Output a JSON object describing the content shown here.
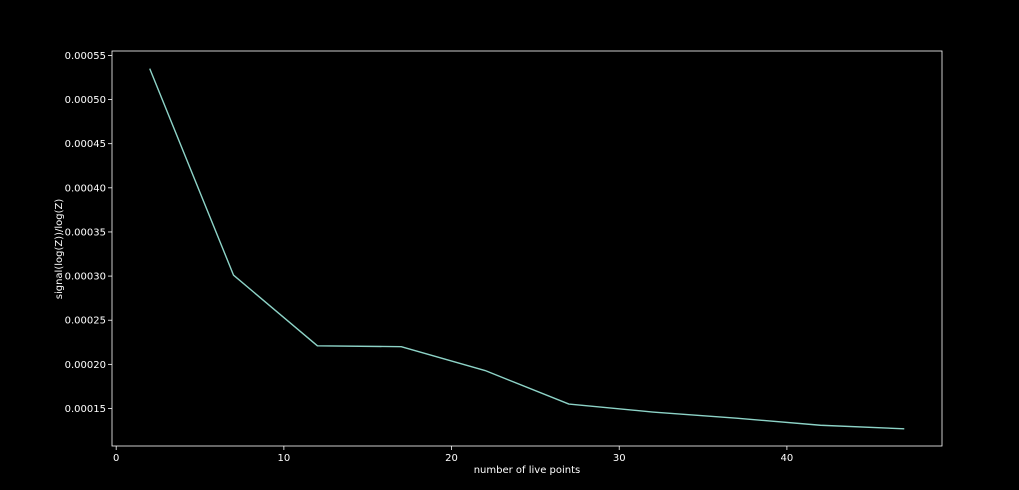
{
  "chart_data": {
    "type": "line",
    "title": "",
    "xlabel": "number of live points",
    "ylabel": "signal(log(Z))/log(Z)",
    "xlim": [
      -0.25,
      49.25
    ],
    "ylim": [
      0.0001075,
      0.000555
    ],
    "grid": false,
    "x_ticks": [
      0,
      10,
      20,
      30,
      40
    ],
    "y_ticks": [
      0.00015,
      0.0002,
      0.00025,
      0.0003,
      0.00035,
      0.0004,
      0.00045,
      0.0005,
      0.00055
    ],
    "y_tick_labels": [
      "0.00015",
      "0.00020",
      "0.00025",
      "0.00030",
      "0.00035",
      "0.00040",
      "0.00045",
      "0.00050",
      "0.00055"
    ],
    "series": [
      {
        "color": "#8dd3c7",
        "x": [
          2,
          7,
          12,
          17,
          22,
          27,
          32,
          37,
          42,
          47
        ],
        "y": [
          0.000535,
          0.000301,
          0.000221,
          0.00022,
          0.000193,
          0.000155,
          0.000146,
          0.000139,
          0.000131,
          0.000127
        ]
      }
    ]
  }
}
